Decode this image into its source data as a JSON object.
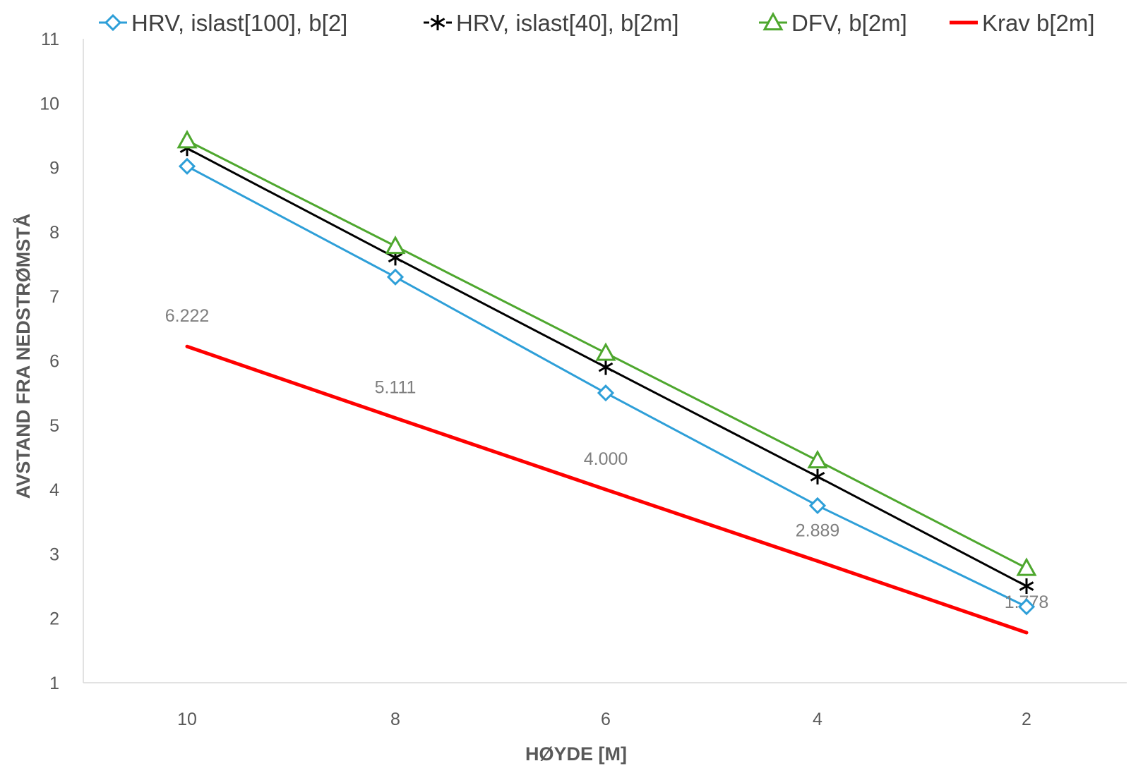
{
  "chart_data": {
    "type": "line",
    "xlabel": "HØYDE [M]",
    "ylabel": "AVSTAND FRA NEDSTRØMSTÅ",
    "categories": [
      "10",
      "8",
      "6",
      "4",
      "2"
    ],
    "ylim": [
      1,
      11
    ],
    "yticks": [
      "1",
      "2",
      "3",
      "4",
      "5",
      "6",
      "7",
      "8",
      "9",
      "10",
      "11"
    ],
    "grid": false,
    "legend_position": "top",
    "series": [
      {
        "name": "HRV, islast[100], b[2]",
        "values": [
          9.02,
          7.3,
          5.5,
          3.75,
          2.18
        ],
        "color": "#2e9fd8",
        "marker": "diamond"
      },
      {
        "name": "HRV, islast[40], b[2m]",
        "values": [
          9.3,
          7.6,
          5.9,
          4.2,
          2.5
        ],
        "color": "#000000",
        "marker": "asterisk"
      },
      {
        "name": "DFV, b[2m]",
        "values": [
          9.42,
          7.78,
          6.12,
          4.45,
          2.78
        ],
        "color": "#4ea72e",
        "marker": "triangle"
      },
      {
        "name": "Krav b[2m]",
        "values": [
          6.222,
          5.111,
          4.0,
          2.889,
          1.778
        ],
        "color": "#ff0000",
        "marker": "none"
      }
    ],
    "data_labels": [
      "6.222",
      "5.111",
      "4.000",
      "2.889",
      "1.778"
    ]
  }
}
